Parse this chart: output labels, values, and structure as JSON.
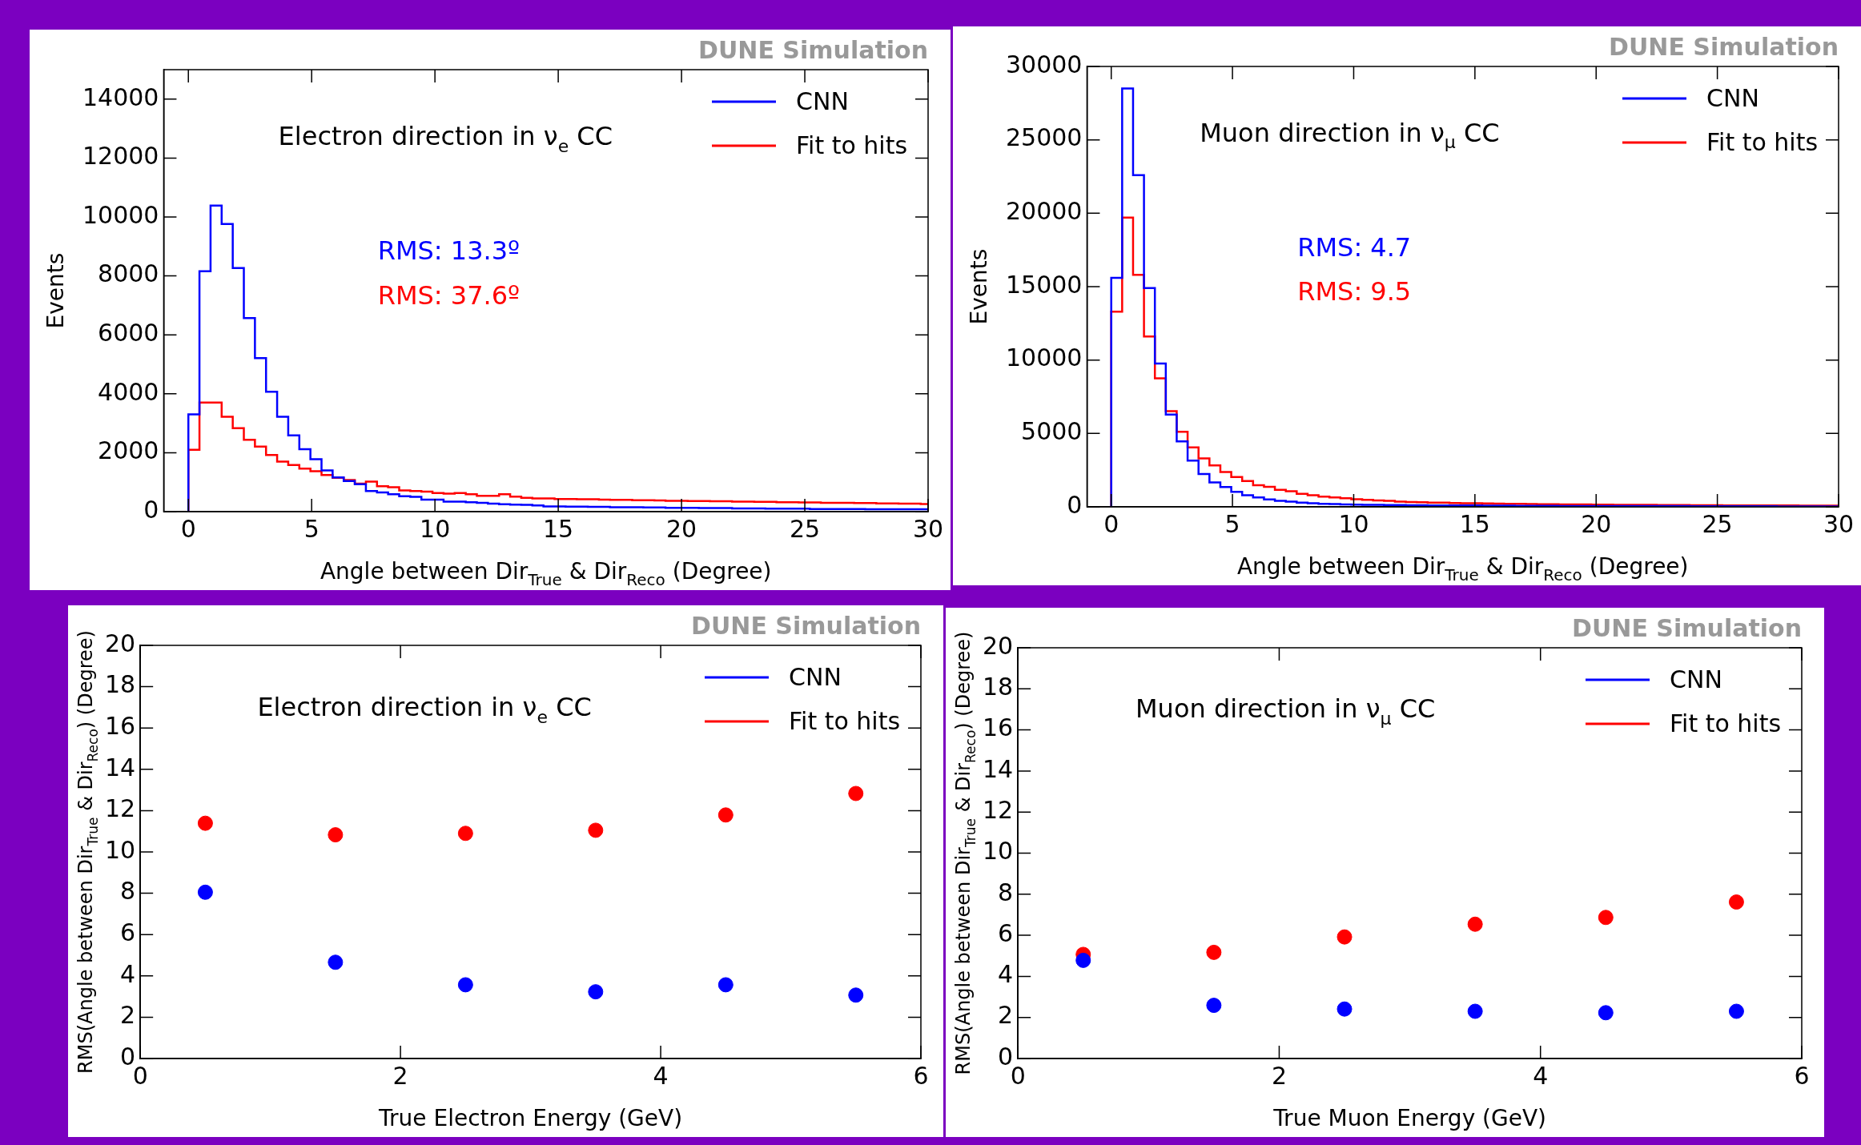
{
  "chart_data": [
    {
      "type": "histogram",
      "xlabel": "Angle between Dir$_{True}$ & Dir$_{Reco}$ (Degree)",
      "ylabel": "Events",
      "annotations": [
        "DUNE Simulation",
        "Electron direction in ν$_{e}$ CC",
        "RMS: 13.3º",
        "RMS: 37.6º"
      ],
      "bins": [
        0,
        0.45,
        0.9,
        1.35,
        1.8,
        2.25,
        2.7,
        3.15,
        3.6,
        4.05,
        4.5,
        4.95,
        5.4,
        5.85,
        6.3,
        6.75,
        7.2,
        7.65,
        8.1,
        8.55,
        9,
        9.45,
        9.9,
        10.35,
        10.8,
        11.25,
        11.7,
        12.15,
        12.6,
        13.05,
        13.5,
        13.95,
        14.4,
        14.85,
        15.3,
        15.75,
        16.2,
        16.65,
        17.1,
        17.55,
        18,
        18.45,
        18.9,
        19.35,
        19.8,
        20.25,
        20.7,
        21.15,
        21.6,
        22.05,
        22.5,
        22.95,
        23.4,
        23.85,
        24.3,
        24.75,
        25.2,
        25.65,
        26.1,
        26.55,
        27,
        27.45,
        27.9,
        28.35,
        28.8,
        29.25,
        29.7,
        30
      ],
      "series": [
        {
          "name": "CNN",
          "color": "#0000ff",
          "values": [
            3300,
            8160,
            10390,
            9760,
            8270,
            6570,
            5210,
            4070,
            3220,
            2590,
            2120,
            1780,
            1400,
            1160,
            1040,
            930,
            700,
            650,
            590,
            520,
            500,
            410,
            410,
            340,
            340,
            320,
            300,
            270,
            250,
            240,
            230,
            210,
            180,
            180,
            170,
            170,
            160,
            160,
            150,
            150,
            150,
            140,
            140,
            130,
            130,
            130,
            120,
            120,
            120,
            110,
            110,
            110,
            100,
            100,
            100,
            100,
            90,
            90,
            90,
            90,
            90,
            80,
            80,
            80,
            80,
            80,
            80
          ]
        },
        {
          "name": "Fit to hits",
          "color": "#ff0000",
          "values": [
            2100,
            3700,
            3700,
            3220,
            2830,
            2440,
            2210,
            1920,
            1700,
            1580,
            1460,
            1370,
            1240,
            1150,
            1070,
            950,
            1020,
            860,
            830,
            720,
            700,
            680,
            630,
            610,
            630,
            590,
            540,
            540,
            590,
            510,
            470,
            450,
            450,
            430,
            430,
            420,
            420,
            410,
            400,
            400,
            390,
            390,
            380,
            370,
            370,
            360,
            360,
            350,
            350,
            340,
            340,
            330,
            330,
            320,
            320,
            310,
            310,
            300,
            300,
            300,
            290,
            290,
            280,
            280,
            270,
            270,
            260
          ]
        }
      ],
      "xlim": [
        -1,
        30
      ],
      "xticks": [
        0,
        5,
        10,
        15,
        20,
        25,
        30
      ],
      "ylim": [
        0,
        15000
      ],
      "yticks": [
        0,
        2000,
        4000,
        6000,
        8000,
        10000,
        12000,
        14000
      ],
      "legend": "top right"
    },
    {
      "type": "histogram",
      "xlabel": "Angle between Dir$_{True}$ & Dir$_{Reco}$ (Degree)",
      "ylabel": "Events",
      "annotations": [
        "DUNE Simulation",
        "Muon direction in ν$_{μ}$ CC",
        "RMS: 4.7",
        "RMS: 9.5"
      ],
      "bins": [
        0,
        0.45,
        0.9,
        1.35,
        1.8,
        2.25,
        2.7,
        3.15,
        3.6,
        4.05,
        4.5,
        4.95,
        5.4,
        5.85,
        6.3,
        6.75,
        7.2,
        7.65,
        8.1,
        8.55,
        9,
        9.45,
        9.9,
        10.35,
        10.8,
        11.25,
        11.7,
        12.15,
        12.6,
        13.05,
        13.5,
        13.95,
        14.4,
        14.85,
        15.3,
        15.75,
        16.2,
        16.65,
        17.1,
        17.55,
        18,
        18.45,
        18.9,
        19.35,
        19.8,
        20.25,
        20.7,
        21.15,
        21.6,
        22.05,
        22.5,
        22.95,
        23.4,
        23.85,
        24.3,
        24.75,
        25.2,
        25.65,
        26.1,
        26.55,
        27,
        27.45,
        27.9,
        28.35,
        28.8,
        29.25,
        29.7,
        30
      ],
      "series": [
        {
          "name": "CNN",
          "color": "#0000ff",
          "values": [
            15600,
            28500,
            22600,
            14900,
            9770,
            6290,
            4460,
            3150,
            2240,
            1660,
            1350,
            1020,
            790,
            640,
            500,
            410,
            350,
            290,
            250,
            210,
            190,
            170,
            150,
            140,
            130,
            120,
            120,
            110,
            110,
            100,
            100,
            90,
            90,
            90,
            80,
            80,
            80,
            70,
            70,
            70,
            70,
            60,
            60,
            60,
            60,
            60,
            50,
            50,
            50,
            50,
            50,
            50,
            50,
            40,
            40,
            40,
            40,
            40,
            40,
            40,
            40,
            30,
            30,
            30,
            30,
            30,
            30
          ]
        },
        {
          "name": "Fit to hits",
          "color": "#ff0000",
          "values": [
            13300,
            19700,
            15800,
            11600,
            8750,
            6520,
            5120,
            4050,
            3300,
            2820,
            2370,
            2030,
            1760,
            1470,
            1370,
            1160,
            1060,
            890,
            790,
            690,
            640,
            580,
            520,
            480,
            440,
            410,
            350,
            330,
            310,
            290,
            280,
            260,
            250,
            240,
            230,
            220,
            210,
            200,
            190,
            180,
            180,
            170,
            160,
            160,
            150,
            150,
            140,
            140,
            130,
            130,
            120,
            120,
            120,
            110,
            110,
            110,
            100,
            100,
            100,
            90,
            90,
            90,
            90,
            80,
            80,
            80,
            80
          ]
        }
      ],
      "xlim": [
        -1,
        30
      ],
      "xticks": [
        0,
        5,
        10,
        15,
        20,
        25,
        30
      ],
      "ylim": [
        0,
        30000
      ],
      "yticks": [
        0,
        5000,
        10000,
        15000,
        20000,
        25000,
        30000
      ],
      "legend": "top right"
    },
    {
      "type": "scatter",
      "xlabel": "True Electron Energy (GeV)",
      "ylabel": "RMS(Angle between Dir$_{True}$ & Dir$_{Reco}$) (Degree)",
      "annotations": [
        "DUNE Simulation",
        "Electron direction in ν$_{e}$ CC"
      ],
      "x": [
        0.5,
        1.5,
        2.5,
        3.5,
        4.5,
        5.5
      ],
      "series": [
        {
          "name": "CNN",
          "color": "#0000ff",
          "values": [
            8.05,
            4.66,
            3.57,
            3.23,
            3.57,
            3.07
          ]
        },
        {
          "name": "Fit to hits",
          "color": "#ff0000",
          "values": [
            11.39,
            10.83,
            10.9,
            11.05,
            11.79,
            12.83
          ]
        }
      ],
      "xlim": [
        0,
        6
      ],
      "xticks": [
        0,
        2,
        4,
        6
      ],
      "ylim": [
        0,
        20
      ],
      "yticks": [
        0,
        2,
        4,
        6,
        8,
        10,
        12,
        14,
        16,
        18,
        20
      ],
      "legend": "top right",
      "marker": "circle"
    },
    {
      "type": "scatter",
      "xlabel": "True Muon Energy (GeV)",
      "ylabel": "RMS(Angle between Dir$_{True}$ & Dir$_{Reco}$) (Degree)",
      "annotations": [
        "DUNE Simulation",
        "Muon direction in ν$_{μ}$ CC"
      ],
      "x": [
        0.5,
        1.5,
        2.5,
        3.5,
        4.5,
        5.5
      ],
      "series": [
        {
          "name": "CNN",
          "color": "#0000ff",
          "values": [
            4.78,
            2.59,
            2.41,
            2.3,
            2.23,
            2.3
          ]
        },
        {
          "name": "Fit to hits",
          "color": "#ff0000",
          "values": [
            5.07,
            5.17,
            5.92,
            6.54,
            6.87,
            7.62
          ]
        }
      ],
      "xlim": [
        0,
        6
      ],
      "xticks": [
        0,
        2,
        4,
        6
      ],
      "ylim": [
        0,
        20
      ],
      "yticks": [
        0,
        2,
        4,
        6,
        8,
        10,
        12,
        14,
        16,
        18,
        20
      ],
      "legend": "top right",
      "marker": "circle"
    }
  ]
}
